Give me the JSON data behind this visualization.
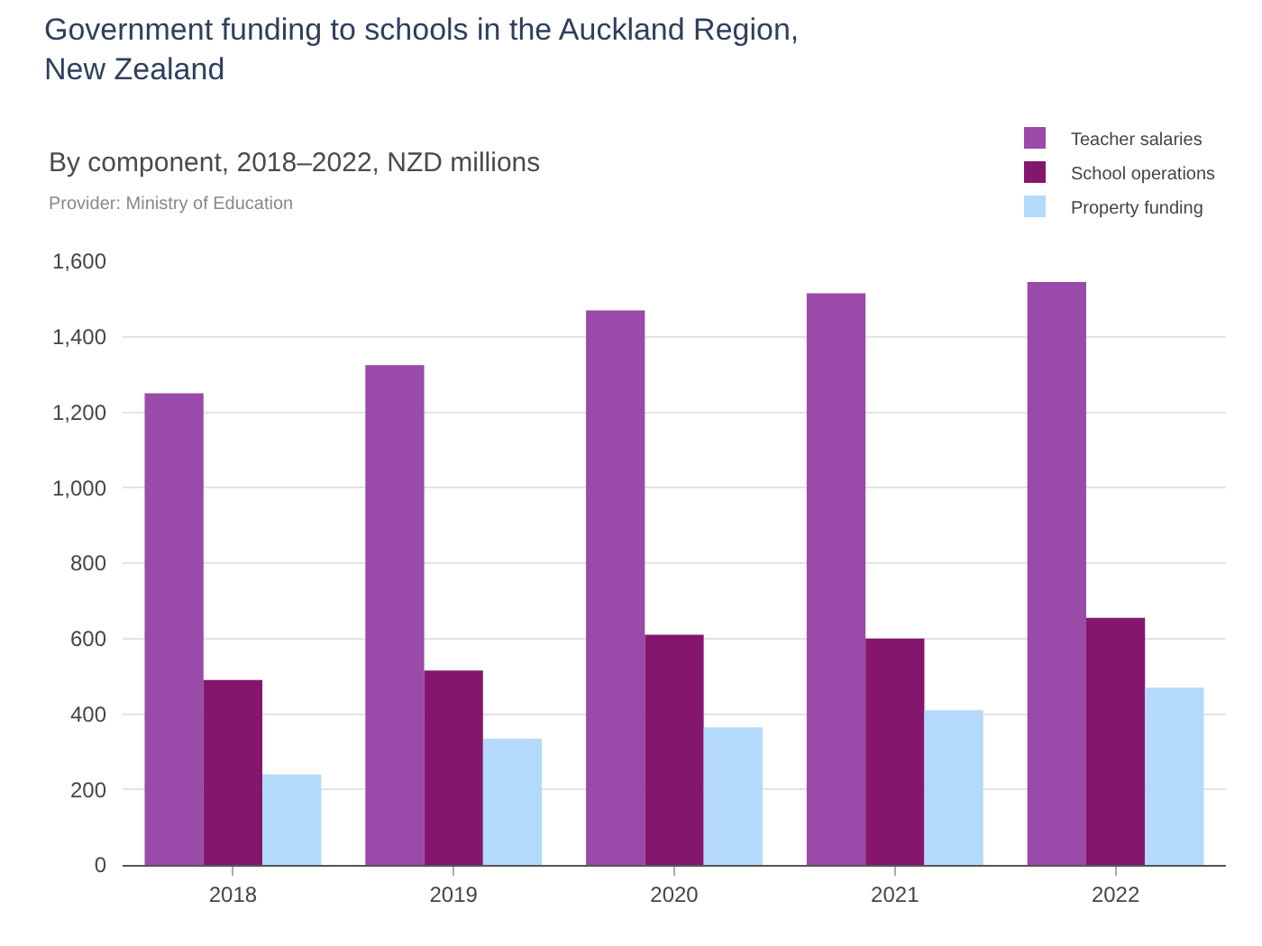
{
  "chart_data": {
    "type": "bar",
    "title": "Government funding to schools in the Auckland Region,\nNew Zealand",
    "subtitle": "By component, 2018–2022, NZD millions",
    "annotations": [
      "Provider: Ministry of Education"
    ],
    "categories": [
      "2018",
      "2019",
      "2020",
      "2021",
      "2022"
    ],
    "series": [
      {
        "name": "Teacher salaries",
        "color": "#9a4aa8",
        "values": [
          1250,
          1325,
          1470,
          1515,
          1545
        ]
      },
      {
        "name": "School operations",
        "color": "#85166e",
        "values": [
          490,
          515,
          610,
          600,
          655
        ]
      },
      {
        "name": "Property funding",
        "color": "#b3dafa",
        "values": [
          240,
          335,
          365,
          410,
          470
        ]
      }
    ],
    "ylim": [
      0,
      1600
    ],
    "yticks": [
      {
        "value": 0,
        "label": "0"
      },
      {
        "value": 200,
        "label": "200"
      },
      {
        "value": 400,
        "label": "400"
      },
      {
        "value": 600,
        "label": "600"
      },
      {
        "value": 800,
        "label": "800"
      },
      {
        "value": 1000,
        "label": "1,000"
      },
      {
        "value": 1200,
        "label": "1,200"
      },
      {
        "value": 1400,
        "label": "1,400"
      },
      {
        "value": 1600,
        "label": "1,600"
      }
    ],
    "grid": "y",
    "legend": "top right"
  }
}
